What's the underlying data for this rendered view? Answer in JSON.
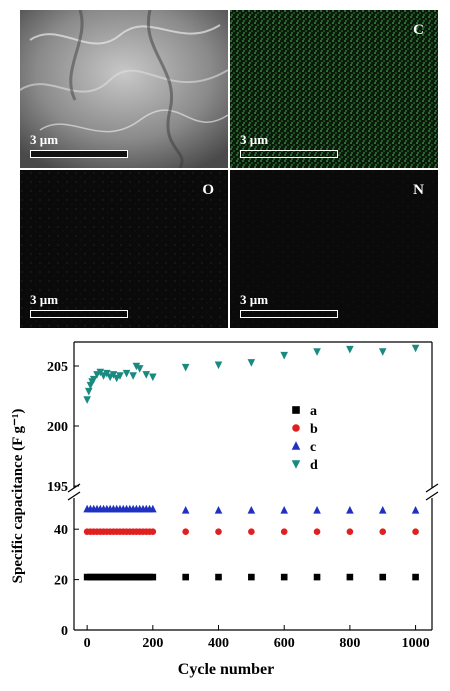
{
  "figure": {
    "panels": [
      {
        "id": "sem",
        "label": "",
        "scale_bar": "3 µm",
        "color": "#9a9a9a"
      },
      {
        "id": "c",
        "label": "C",
        "scale_bar": "3 µm",
        "color": "#2f8a3a"
      },
      {
        "id": "o",
        "label": "O",
        "scale_bar": "3 µm",
        "color": "#3a3a3a"
      },
      {
        "id": "n",
        "label": "N",
        "scale_bar": "3 µm",
        "color": "#3a3a3a"
      }
    ]
  },
  "chart_data": {
    "type": "scatter",
    "xlabel": "Cycle number",
    "ylabel": "Specific capacitance (F g⁻¹)",
    "x_ticks": [
      0,
      200,
      400,
      600,
      800,
      1000
    ],
    "y_ticks_lower": [
      0,
      20,
      40
    ],
    "y_ticks_upper": [
      195,
      200,
      205
    ],
    "broken_axis": true,
    "xlim": [
      -40,
      1050
    ],
    "ylim_lower": [
      0,
      50
    ],
    "ylim_upper": [
      195,
      207
    ],
    "legend_position": "center-right",
    "series": [
      {
        "name": "a",
        "marker": "square",
        "color": "#000000",
        "x": [
          0,
          10,
          20,
          30,
          40,
          50,
          60,
          70,
          80,
          90,
          100,
          110,
          120,
          130,
          140,
          150,
          160,
          170,
          180,
          190,
          200,
          300,
          400,
          500,
          600,
          700,
          800,
          900,
          1000
        ],
        "y": [
          21,
          21,
          21,
          21,
          21,
          21,
          21,
          21,
          21,
          21,
          21,
          21,
          21,
          21,
          21,
          21,
          21,
          21,
          21,
          21,
          21,
          21,
          21,
          21,
          21,
          21,
          21,
          21,
          21
        ]
      },
      {
        "name": "b",
        "marker": "circle",
        "color": "#e02020",
        "x": [
          0,
          10,
          20,
          30,
          40,
          50,
          60,
          70,
          80,
          90,
          100,
          110,
          120,
          130,
          140,
          150,
          160,
          170,
          180,
          190,
          200,
          300,
          400,
          500,
          600,
          700,
          800,
          900,
          1000
        ],
        "y": [
          39,
          39,
          39,
          39,
          39,
          39,
          39,
          39,
          39,
          39,
          39,
          39,
          39,
          39,
          39,
          39,
          39,
          39,
          39,
          39,
          39,
          39,
          39,
          39,
          39,
          39,
          39,
          39,
          39
        ]
      },
      {
        "name": "c",
        "marker": "triangle-up",
        "color": "#2030c0",
        "x": [
          0,
          10,
          20,
          30,
          40,
          50,
          60,
          70,
          80,
          90,
          100,
          110,
          120,
          130,
          140,
          150,
          160,
          170,
          180,
          190,
          200,
          300,
          400,
          500,
          600,
          700,
          800,
          900,
          1000
        ],
        "y": [
          48,
          48,
          48,
          48,
          48,
          48,
          48,
          48,
          48,
          48,
          48,
          48,
          48,
          48,
          48,
          48,
          48,
          48,
          48,
          48,
          48,
          47.5,
          47.5,
          47.5,
          47.5,
          47.5,
          47.5,
          47.5,
          47.5
        ]
      },
      {
        "name": "d",
        "marker": "triangle-down",
        "color": "#1a8a80",
        "x": [
          0,
          5,
          10,
          15,
          20,
          30,
          40,
          50,
          60,
          70,
          80,
          90,
          100,
          120,
          140,
          150,
          160,
          180,
          200,
          300,
          400,
          500,
          600,
          700,
          800,
          900,
          1000
        ],
        "y": [
          202.2,
          202.9,
          203.4,
          203.7,
          203.9,
          204.3,
          204.5,
          204.2,
          204.4,
          204.1,
          204.3,
          204.0,
          204.2,
          204.4,
          204.2,
          205.0,
          204.8,
          204.3,
          204.1,
          204.9,
          205.1,
          205.3,
          205.9,
          206.2,
          206.4,
          206.2,
          206.5
        ]
      }
    ]
  }
}
